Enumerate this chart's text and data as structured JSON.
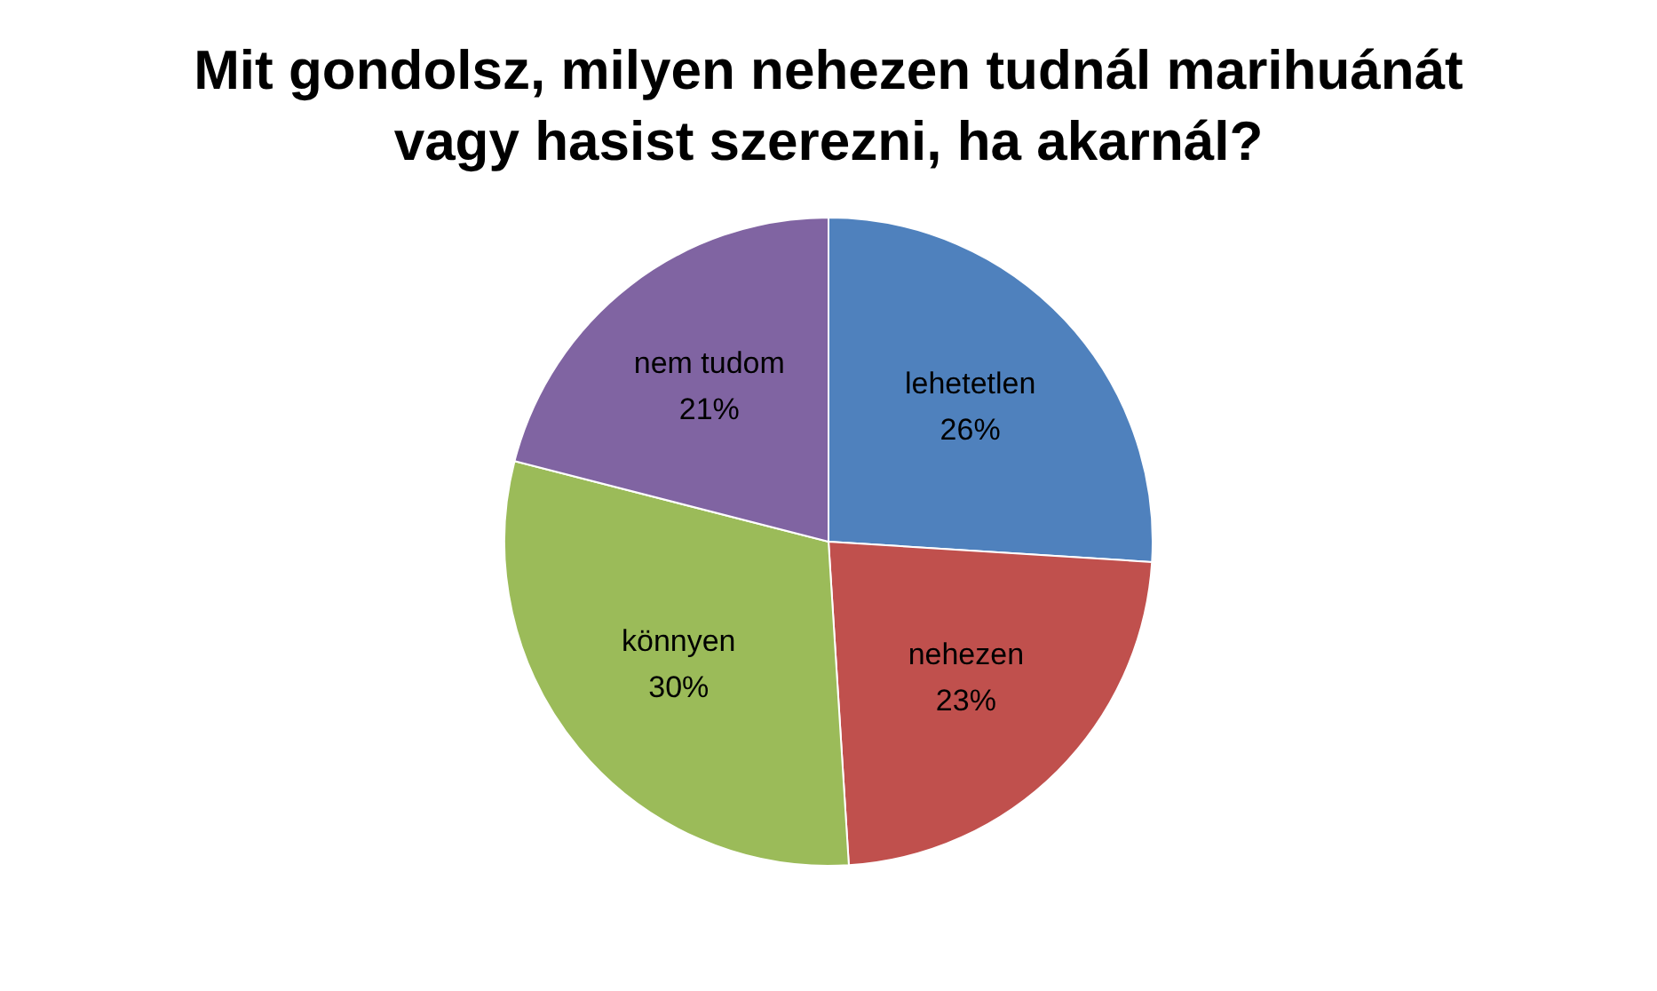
{
  "chart_data": {
    "type": "pie",
    "title": "Mit gondolsz, milyen nehezen tudnál marihuánát vagy hasist szerezni, ha akarnál?",
    "categories": [
      "lehetetlen",
      "nehezen",
      "könnyen",
      "nem tudom"
    ],
    "values": [
      26,
      23,
      30,
      21
    ],
    "colors": [
      "#4f81bd",
      "#c0504d",
      "#9bbb59",
      "#8064a2"
    ],
    "value_labels": [
      "26%",
      "23%",
      "30%",
      "21%"
    ],
    "legend": false
  }
}
